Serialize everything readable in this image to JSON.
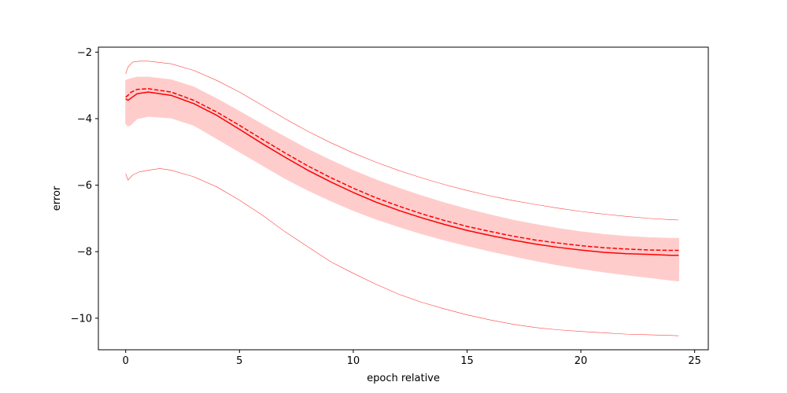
{
  "chart_data": {
    "type": "line",
    "title": "",
    "xlabel": "epoch relative",
    "ylabel": "error",
    "xlim": [
      -1.2,
      25.6
    ],
    "ylim": [
      -10.95,
      -1.85
    ],
    "x_ticks": [
      0,
      5,
      10,
      15,
      20,
      25
    ],
    "y_ticks": [
      -10,
      -8,
      -6,
      -4,
      -2
    ],
    "grid": false,
    "legend": "none",
    "color": "#ff0000",
    "band_color": "#ffcccc",
    "series": [
      {
        "role": "band",
        "x": [
          0,
          0.1,
          0.2,
          0.5,
          1,
          2,
          3,
          4,
          5,
          6,
          7,
          8,
          9,
          10,
          11,
          12,
          13,
          14,
          15,
          16,
          17,
          18,
          19,
          20,
          21,
          22,
          23,
          24,
          24.3
        ],
        "y_low": [
          -4.15,
          -4.22,
          -4.2,
          -4.0,
          -3.93,
          -3.98,
          -4.2,
          -4.6,
          -5.0,
          -5.4,
          -5.8,
          -6.15,
          -6.47,
          -6.76,
          -7.02,
          -7.25,
          -7.46,
          -7.65,
          -7.82,
          -7.98,
          -8.13,
          -8.27,
          -8.4,
          -8.51,
          -8.61,
          -8.7,
          -8.78,
          -8.86,
          -8.88
        ],
        "y_high": [
          -2.85,
          -2.82,
          -2.8,
          -2.75,
          -2.75,
          -2.83,
          -3.05,
          -3.4,
          -3.78,
          -4.17,
          -4.55,
          -4.92,
          -5.25,
          -5.56,
          -5.84,
          -6.09,
          -6.32,
          -6.53,
          -6.72,
          -6.89,
          -7.05,
          -7.18,
          -7.3,
          -7.4,
          -7.48,
          -7.54,
          -7.58,
          -7.6,
          -7.6
        ]
      },
      {
        "role": "mean",
        "style": "solid",
        "x": [
          0,
          0.1,
          0.2,
          0.5,
          1,
          2,
          3,
          4,
          5,
          6,
          7,
          8,
          9,
          10,
          11,
          12,
          13,
          14,
          15,
          16,
          17,
          18,
          19,
          20,
          21,
          22,
          23,
          24,
          24.3
        ],
        "y": [
          -3.4,
          -3.45,
          -3.4,
          -3.25,
          -3.2,
          -3.3,
          -3.55,
          -3.9,
          -4.32,
          -4.75,
          -5.16,
          -5.55,
          -5.9,
          -6.22,
          -6.51,
          -6.76,
          -6.98,
          -7.18,
          -7.36,
          -7.51,
          -7.65,
          -7.77,
          -7.87,
          -7.95,
          -8.02,
          -8.06,
          -8.08,
          -8.11,
          -8.11
        ]
      },
      {
        "role": "median",
        "style": "dashed",
        "x": [
          0,
          0.1,
          0.2,
          0.5,
          1,
          2,
          3,
          4,
          5,
          6,
          7,
          8,
          9,
          10,
          11,
          12,
          13,
          14,
          15,
          16,
          17,
          18,
          19,
          20,
          21,
          22,
          23,
          24,
          24.3
        ],
        "y": [
          -3.35,
          -3.3,
          -3.22,
          -3.12,
          -3.1,
          -3.2,
          -3.45,
          -3.8,
          -4.2,
          -4.62,
          -5.03,
          -5.42,
          -5.77,
          -6.09,
          -6.38,
          -6.63,
          -6.86,
          -7.06,
          -7.24,
          -7.39,
          -7.53,
          -7.65,
          -7.74,
          -7.82,
          -7.88,
          -7.92,
          -7.95,
          -7.96,
          -7.96
        ]
      },
      {
        "role": "max",
        "style": "thin",
        "x": [
          0,
          0.1,
          0.3,
          0.6,
          1,
          2,
          3,
          4,
          5,
          6,
          7,
          8,
          9,
          10,
          11,
          12,
          13,
          14,
          15,
          16,
          17,
          18,
          19,
          20,
          21,
          22,
          23,
          24,
          24.3
        ],
        "y": [
          -2.65,
          -2.45,
          -2.3,
          -2.27,
          -2.27,
          -2.35,
          -2.55,
          -2.85,
          -3.2,
          -3.6,
          -4.0,
          -4.38,
          -4.72,
          -5.03,
          -5.31,
          -5.56,
          -5.78,
          -5.98,
          -6.16,
          -6.32,
          -6.46,
          -6.58,
          -6.69,
          -6.79,
          -6.87,
          -6.94,
          -7.0,
          -7.04,
          -7.05
        ]
      },
      {
        "role": "min",
        "style": "thin",
        "x": [
          0,
          0.1,
          0.3,
          0.6,
          1,
          1.5,
          2,
          3,
          4,
          5,
          6,
          7,
          8,
          9,
          10,
          11,
          12,
          13,
          14,
          15,
          16,
          17,
          18,
          19,
          20,
          21,
          22,
          23,
          24,
          24.3
        ],
        "y": [
          -5.65,
          -5.85,
          -5.7,
          -5.6,
          -5.55,
          -5.5,
          -5.55,
          -5.75,
          -6.05,
          -6.45,
          -6.9,
          -7.4,
          -7.85,
          -8.3,
          -8.65,
          -8.98,
          -9.28,
          -9.52,
          -9.72,
          -9.9,
          -10.05,
          -10.18,
          -10.28,
          -10.35,
          -10.4,
          -10.44,
          -10.48,
          -10.5,
          -10.52,
          -10.53
        ]
      }
    ]
  }
}
